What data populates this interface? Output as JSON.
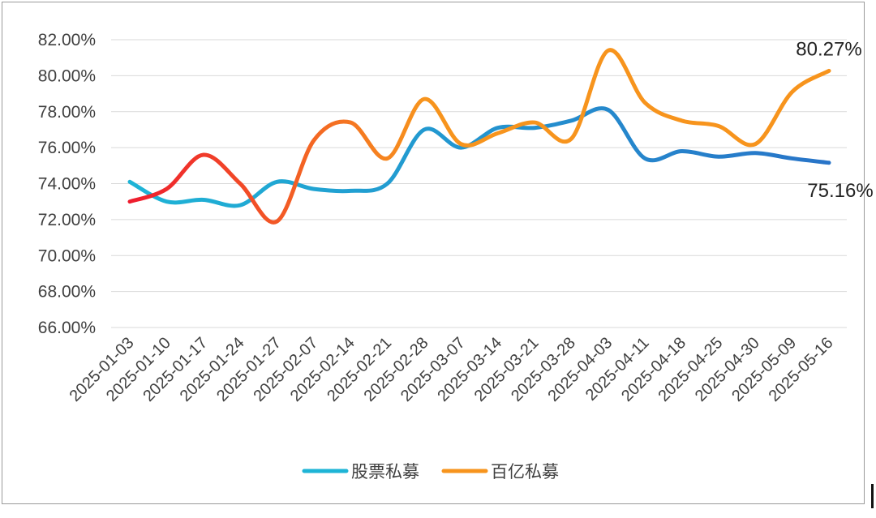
{
  "chart_data": {
    "type": "line",
    "categories": [
      "2025-01-03",
      "2025-01-10",
      "2025-01-17",
      "2025-01-24",
      "2025-01-27",
      "2025-02-07",
      "2025-02-14",
      "2025-02-21",
      "2025-02-28",
      "2025-03-07",
      "2025-03-14",
      "2025-03-21",
      "2025-03-28",
      "2025-04-03",
      "2025-04-11",
      "2025-04-18",
      "2025-04-25",
      "2025-04-30",
      "2025-05-09",
      "2025-05-16"
    ],
    "y_ticks": [
      "66.00%",
      "68.00%",
      "70.00%",
      "72.00%",
      "74.00%",
      "76.00%",
      "78.00%",
      "80.00%",
      "82.00%"
    ],
    "ylim": [
      66,
      82
    ],
    "grid": "horizontal",
    "legend_position": "bottom",
    "series": [
      {
        "name": "股票私募",
        "color_start": "#1eb4d6",
        "color_end": "#2874c8",
        "values": [
          74.1,
          73.0,
          73.1,
          72.8,
          74.1,
          73.7,
          73.6,
          74.0,
          77.0,
          76.0,
          77.1,
          77.1,
          77.5,
          78.1,
          75.4,
          75.8,
          75.5,
          75.7,
          75.4,
          75.16
        ]
      },
      {
        "name": "百亿私募",
        "color_start": "#ee1c2e",
        "color_end": "#f7941d",
        "values": [
          73.0,
          73.7,
          75.6,
          74.0,
          71.9,
          76.4,
          77.4,
          75.4,
          78.7,
          76.2,
          76.8,
          77.4,
          76.5,
          81.4,
          78.5,
          77.5,
          77.2,
          76.2,
          79.1,
          80.27
        ]
      }
    ],
    "annotations": [
      {
        "text": "80.27%",
        "series": 1,
        "index": 19
      },
      {
        "text": "75.16%",
        "series": 0,
        "index": 19
      }
    ]
  }
}
